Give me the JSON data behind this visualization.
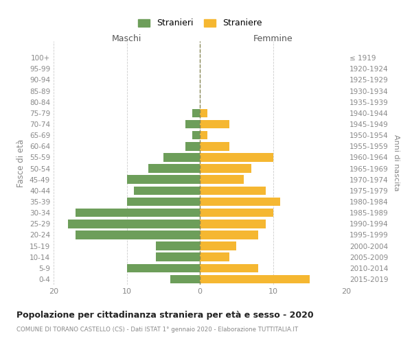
{
  "age_groups": [
    "0-4",
    "5-9",
    "10-14",
    "15-19",
    "20-24",
    "25-29",
    "30-34",
    "35-39",
    "40-44",
    "45-49",
    "50-54",
    "55-59",
    "60-64",
    "65-69",
    "70-74",
    "75-79",
    "80-84",
    "85-89",
    "90-94",
    "95-99",
    "100+"
  ],
  "birth_years": [
    "2015-2019",
    "2010-2014",
    "2005-2009",
    "2000-2004",
    "1995-1999",
    "1990-1994",
    "1985-1989",
    "1980-1984",
    "1975-1979",
    "1970-1974",
    "1965-1969",
    "1960-1964",
    "1955-1959",
    "1950-1954",
    "1945-1949",
    "1940-1944",
    "1935-1939",
    "1930-1934",
    "1925-1929",
    "1920-1924",
    "≤ 1919"
  ],
  "maschi": [
    4,
    10,
    6,
    6,
    17,
    18,
    17,
    10,
    9,
    10,
    7,
    5,
    2,
    1,
    2,
    1,
    0,
    0,
    0,
    0,
    0
  ],
  "femmine": [
    15,
    8,
    4,
    5,
    8,
    9,
    10,
    11,
    9,
    6,
    7,
    10,
    4,
    1,
    4,
    1,
    0,
    0,
    0,
    0,
    0
  ],
  "color_maschi": "#6d9e5a",
  "color_femmine": "#f5b731",
  "title_main": "Popolazione per cittadinanza straniera per età e sesso - 2020",
  "title_sub": "COMUNE DI TORANO CASTELLO (CS) - Dati ISTAT 1° gennaio 2020 - Elaborazione TUTTITALIA.IT",
  "label_maschi": "Maschi",
  "label_femmine": "Femmine",
  "legend_stranieri": "Stranieri",
  "legend_straniere": "Straniere",
  "ylabel_left": "Fasce di età",
  "ylabel_right": "Anni di nascita",
  "xlim": 20,
  "background_color": "#ffffff",
  "grid_color": "#cccccc"
}
